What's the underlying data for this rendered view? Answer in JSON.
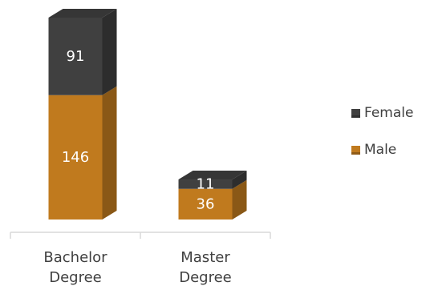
{
  "chart_data": {
    "type": "bar",
    "stacked": true,
    "three_d": true,
    "categories": [
      "Bachelor\nDegree",
      "Master\nDegree"
    ],
    "series": [
      {
        "name": "Male",
        "values": [
          146,
          36
        ],
        "color": "#C07A1E"
      },
      {
        "name": "Female",
        "values": [
          91,
          11
        ],
        "color": "#404040"
      }
    ],
    "title": "",
    "xlabel": "",
    "ylabel": "",
    "ylim": [
      0,
      237
    ],
    "grid": false,
    "legend_position": "right",
    "data_labels": true
  }
}
